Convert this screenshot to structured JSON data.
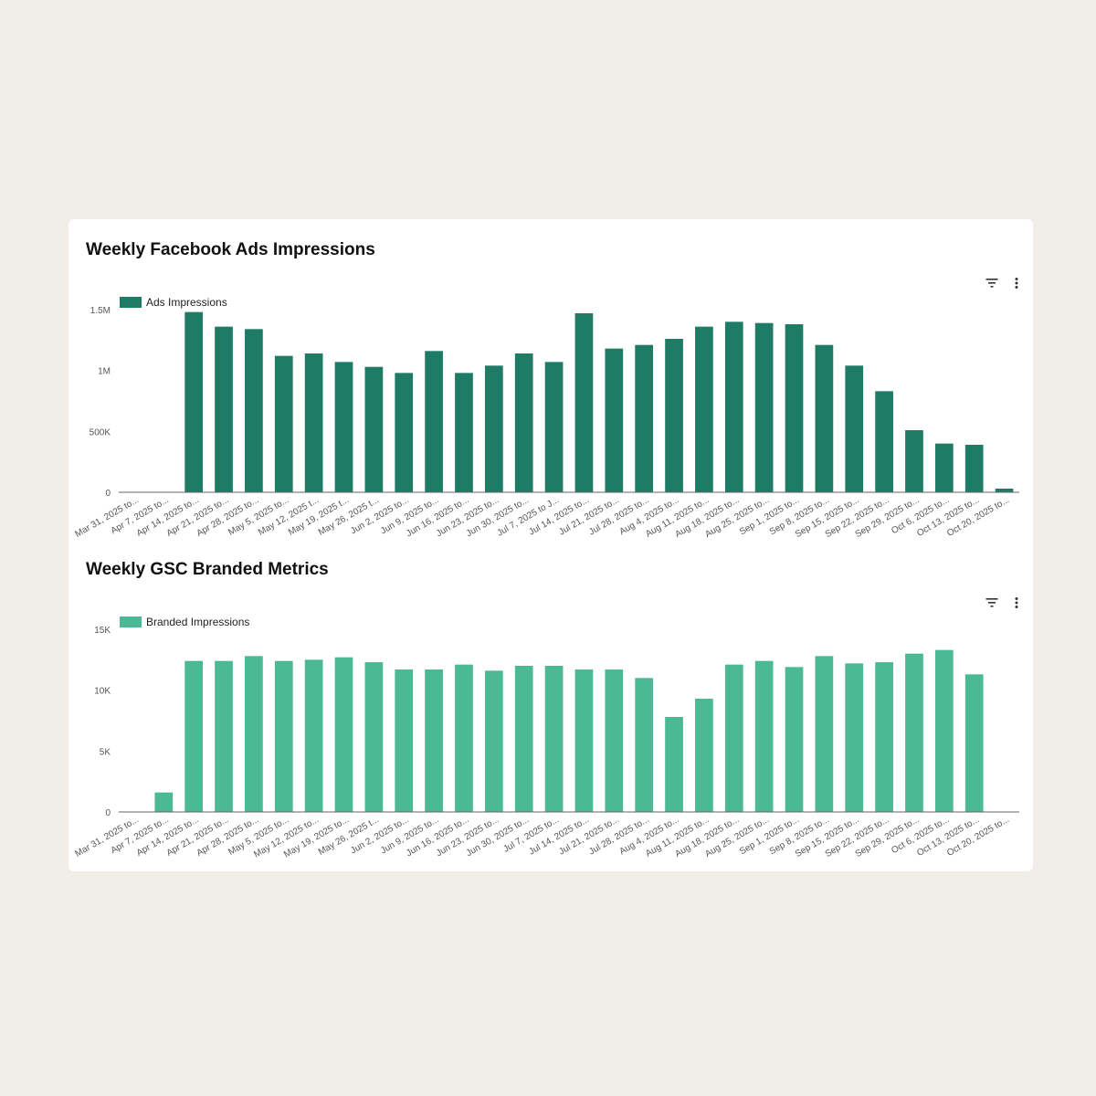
{
  "charts": [
    {
      "title": "Weekly Facebook Ads Impressions",
      "filter_icon": "filter-icon",
      "more_icon": "more-vert-icon"
    },
    {
      "title": "Weekly GSC Branded Metrics",
      "filter_icon": "filter-icon",
      "more_icon": "more-vert-icon"
    }
  ],
  "chart_data": [
    {
      "type": "bar",
      "title": "Weekly Facebook Ads Impressions",
      "xlabel": "",
      "ylabel": "",
      "ylim": [
        0,
        1500000
      ],
      "yticks": [
        0,
        500000,
        1000000,
        1500000
      ],
      "ytick_labels": [
        "0",
        "500K",
        "1M",
        "1.5M"
      ],
      "legend": "top-left",
      "color": "#1e7b66",
      "categories": [
        "Mar 31, 2025 to...",
        "Apr 7, 2025 to...",
        "Apr 14, 2025 to...",
        "Apr 21, 2025 to...",
        "Apr 28, 2025 to...",
        "May 5, 2025 to...",
        "May 12, 2025 t...",
        "May 19, 2025 t...",
        "May 26, 2025 t...",
        "Jun 2, 2025 to...",
        "Jun 9, 2025 to...",
        "Jun 16, 2025 to...",
        "Jun 23, 2025 to...",
        "Jun 30, 2025 to...",
        "Jul 7, 2025 to J...",
        "Jul 14, 2025 to...",
        "Jul 21, 2025 to...",
        "Jul 28, 2025 to...",
        "Aug 4, 2025 to...",
        "Aug 11, 2025 to...",
        "Aug 18, 2025 to...",
        "Aug 25, 2025 to...",
        "Sep 1, 2025 to...",
        "Sep 8, 2025 to...",
        "Sep 15, 2025 to...",
        "Sep 22, 2025 to...",
        "Sep 29, 2025 to...",
        "Oct 6, 2025 to...",
        "Oct 13, 2025 to...",
        "Oct 20, 2025 to..."
      ],
      "series": [
        {
          "name": "Ads Impressions",
          "values": [
            0,
            0,
            1480000,
            1360000,
            1340000,
            1120000,
            1140000,
            1070000,
            1030000,
            980000,
            1160000,
            980000,
            1040000,
            1140000,
            1070000,
            1470000,
            1180000,
            1210000,
            1260000,
            1360000,
            1400000,
            1390000,
            1380000,
            1210000,
            1040000,
            830000,
            510000,
            400000,
            390000,
            30000
          ]
        }
      ]
    },
    {
      "type": "bar",
      "title": "Weekly GSC Branded Metrics",
      "xlabel": "",
      "ylabel": "",
      "ylim": [
        0,
        15000
      ],
      "yticks": [
        0,
        5000,
        10000,
        15000
      ],
      "ytick_labels": [
        "0",
        "5K",
        "10K",
        "15K"
      ],
      "legend": "top-left",
      "color": "#4ab994",
      "categories": [
        "Mar 31, 2025 to...",
        "Apr 7, 2025 to...",
        "Apr 14, 2025 to...",
        "Apr 21, 2025 to...",
        "Apr 28, 2025 to...",
        "May 5, 2025 to...",
        "May 12, 2025 to...",
        "May 19, 2025 to...",
        "May 26, 2025 t...",
        "Jun 2, 2025 to...",
        "Jun 9, 2025 to...",
        "Jun 16, 2025 to...",
        "Jun 23, 2025 to...",
        "Jun 30, 2025 to...",
        "Jul 7, 2025 to...",
        "Jul 14, 2025 to...",
        "Jul 21, 2025 to...",
        "Jul 28, 2025 to...",
        "Aug 4, 2025 to...",
        "Aug 11, 2025 to...",
        "Aug 18, 2025 to...",
        "Aug 25, 2025 to...",
        "Sep 1, 2025 to...",
        "Sep 8, 2025 to...",
        "Sep 15, 2025 to...",
        "Sep 22, 2025 to...",
        "Sep 29, 2025 to...",
        "Oct 6, 2025 to...",
        "Oct 13, 2025 to...",
        "Oct 20, 2025 to..."
      ],
      "series": [
        {
          "name": "Branded Impressions",
          "values": [
            0,
            1600,
            12400,
            12400,
            12800,
            12400,
            12500,
            12700,
            12300,
            11700,
            11700,
            12100,
            11600,
            12000,
            12000,
            11700,
            11700,
            11000,
            7800,
            9300,
            12100,
            12400,
            11900,
            12800,
            12200,
            12300,
            13000,
            13300,
            11300,
            0
          ]
        }
      ]
    }
  ]
}
